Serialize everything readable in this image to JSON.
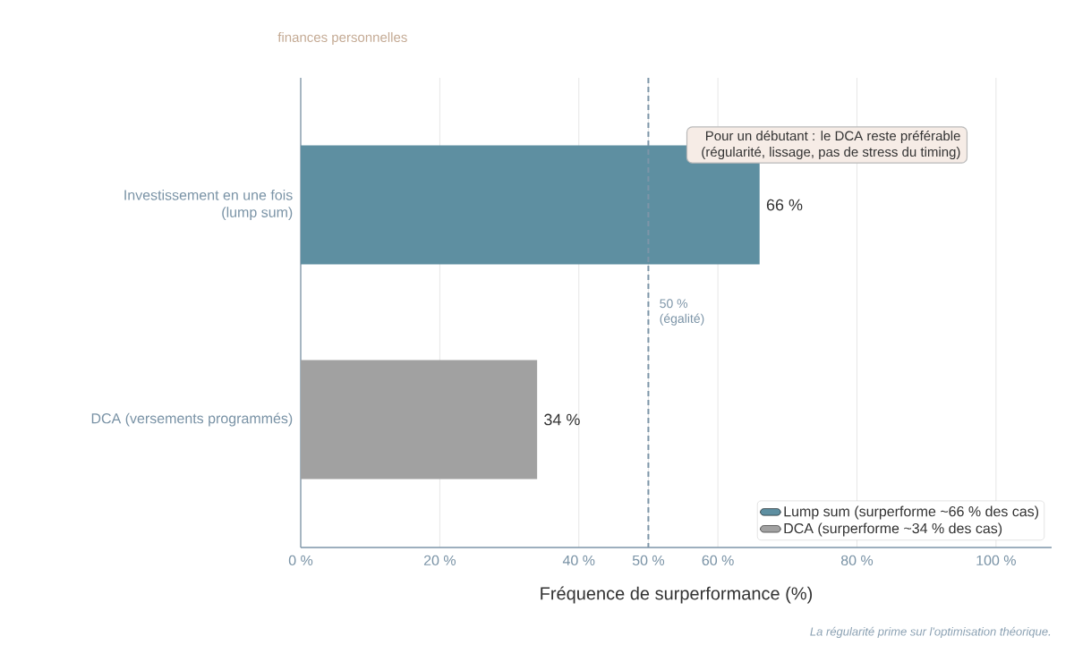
{
  "chart_data": {
    "type": "bar",
    "orientation": "horizontal",
    "subtitle": "finances personnelles",
    "xlabel": "Fréquence de surperformance (%)",
    "categories": [
      "Investissement en une fois\n(lump sum)",
      "DCA (versements programmés)"
    ],
    "series": [
      {
        "name": "Lump sum (surperforme ~66 % des cas)",
        "color": "#5e8fa1",
        "values": [
          66,
          null
        ],
        "value_labels": [
          "66 %",
          null
        ]
      },
      {
        "name": "DCA (surperforme ~34 % des cas)",
        "color": "#a1a1a1",
        "values": [
          null,
          34
        ],
        "value_labels": [
          null,
          "34 %"
        ]
      }
    ],
    "xlim": [
      0,
      108
    ],
    "xticks": [
      {
        "value": 0,
        "label": "0 %"
      },
      {
        "value": 20,
        "label": "20 %"
      },
      {
        "value": 40,
        "label": "40 %"
      },
      {
        "value": 50,
        "label": "50 %"
      },
      {
        "value": 60,
        "label": "60 %"
      },
      {
        "value": 80,
        "label": "80 %"
      },
      {
        "value": 100,
        "label": "100 %"
      }
    ],
    "ref_lines": [
      {
        "axis": "x",
        "value": 50,
        "label": "50 %\n(égalité)",
        "line_style": "dashed",
        "color": "#7d95a8"
      }
    ],
    "annotations": [
      "Pour un débutant : le DCA reste préférable\n(régularité, lissage, pas de stress du timing)",
      "La régularité prime sur l'optimisation théorique."
    ],
    "grid": "x",
    "legend": "bottom right"
  }
}
